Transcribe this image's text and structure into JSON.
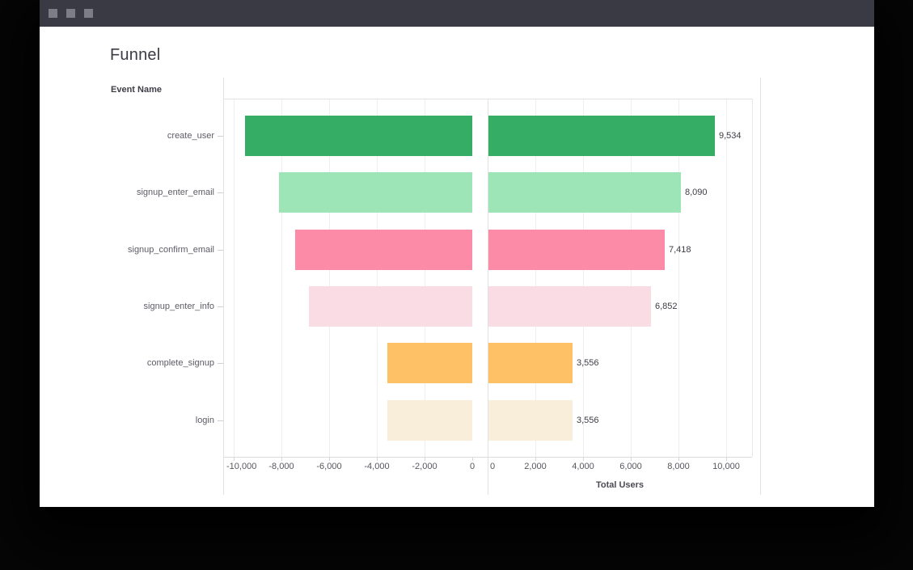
{
  "titlebar": {
    "button_count": 3
  },
  "chart_data": {
    "type": "bar",
    "subtype": "mirrored-horizontal-funnel",
    "title": "Funnel",
    "column_header": "Event Name",
    "xlabel": "Total Users",
    "categories": [
      "create_user",
      "signup_enter_email",
      "signup_confirm_email",
      "signup_enter_info",
      "complete_signup",
      "login"
    ],
    "values": [
      9534,
      8090,
      7418,
      6852,
      3556,
      3556
    ],
    "value_labels": [
      "9,534",
      "8,090",
      "7,418",
      "6,852",
      "3,556",
      "3,556"
    ],
    "bar_colors": [
      "#35ad64",
      "#9de4b6",
      "#fc8ba8",
      "#f9dce4",
      "#fec165",
      "#f8eeda"
    ],
    "left_axis": {
      "xlim": [
        -10440,
        0
      ],
      "ticks": [
        {
          "v": -10000,
          "label": "-10,000"
        },
        {
          "v": -8000,
          "label": "-8,000"
        },
        {
          "v": -6000,
          "label": "-6,000"
        },
        {
          "v": -4000,
          "label": "-4,000"
        },
        {
          "v": -2000,
          "label": "-2,000"
        },
        {
          "v": 0,
          "label": "0"
        }
      ]
    },
    "right_axis": {
      "xlim": [
        0,
        11085
      ],
      "ticks": [
        {
          "v": 0,
          "label": "0"
        },
        {
          "v": 2000,
          "label": "2,000"
        },
        {
          "v": 4000,
          "label": "4,000"
        },
        {
          "v": 6000,
          "label": "6,000"
        },
        {
          "v": 8000,
          "label": "8,000"
        },
        {
          "v": 10000,
          "label": "10,000"
        }
      ]
    },
    "legend": "none",
    "grid": "vertical-light"
  },
  "colors": {
    "titlebar_bg": "#3a3a44",
    "titlebar_button": "#7d7d87",
    "window_bg": "#ffffff",
    "border": "#e2e2e6",
    "gridline": "#efeff2",
    "text_dark": "#3b3b45",
    "text_muted": "#5c5c65"
  }
}
